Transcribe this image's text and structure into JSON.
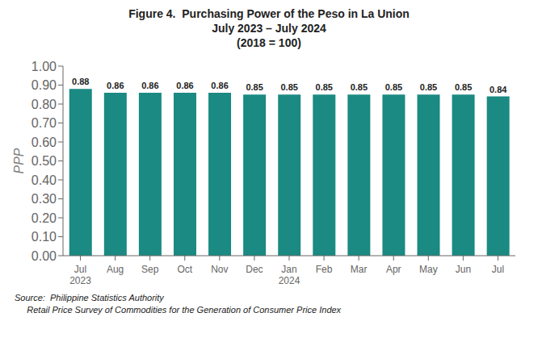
{
  "chart_data": {
    "type": "bar",
    "title": "Figure 4.  Purchasing Power of the Peso in La Union",
    "subtitle": [
      "July 2023 – July 2024",
      "(2018 = 100)"
    ],
    "categories": [
      "Jul\n2023",
      "Aug",
      "Sep",
      "Oct",
      "Nov",
      "Dec",
      "Jan\n2024",
      "Feb",
      "Mar",
      "Apr",
      "May",
      "Jun",
      "Jul"
    ],
    "values": [
      0.88,
      0.86,
      0.86,
      0.86,
      0.86,
      0.85,
      0.85,
      0.85,
      0.85,
      0.85,
      0.85,
      0.85,
      0.84
    ],
    "color": "#1a8a82",
    "ylabel": "PPP",
    "ylim": [
      0.0,
      1.0
    ],
    "yticks": [
      {
        "value": 0,
        "label": "0.00"
      },
      {
        "value": 0.1,
        "label": "0.10"
      },
      {
        "value": 0.2,
        "label": "0.20"
      },
      {
        "value": 0.3,
        "label": "0.30"
      },
      {
        "value": 0.4,
        "label": "0.40"
      },
      {
        "value": 0.5,
        "label": "0.50"
      },
      {
        "value": 0.6,
        "label": "0.60"
      },
      {
        "value": 0.7,
        "label": "0.70"
      },
      {
        "value": 0.8,
        "label": "0.80"
      },
      {
        "value": 0.9,
        "label": "0.90"
      },
      {
        "value": 1,
        "label": "1.00"
      }
    ],
    "grid": false,
    "data_labels": true,
    "annotations": [
      "Source:  Philippine Statistics Authority",
      "     Retail Price Survey of Commodities for the Generation of Consumer Price Index"
    ]
  }
}
